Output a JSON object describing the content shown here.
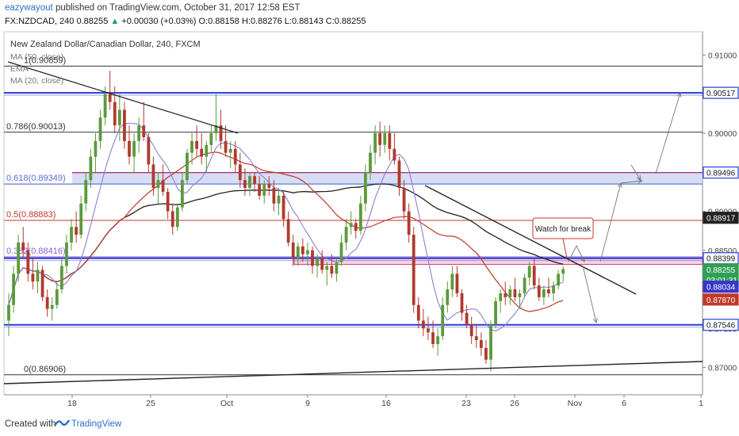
{
  "header": {
    "author": "eazywayout",
    "published_text": "published on TradingView.com, October 31, 2017 12:58 EST",
    "symbol": "FX:NZDCAD, 240",
    "last": "0.88255",
    "change": "+0.00030 (+0.03%)",
    "ohlc": "O:0.88158 H:0.88276 L:0.88143 C:0.88255"
  },
  "legend": {
    "title": "New Zealand Dollar/Canadian Dollar, 240, FXCM",
    "ma50": "MA (50, close)",
    "ema": "EMA",
    "ma20": "MA (20, close)"
  },
  "footer": {
    "created_with": "Created with",
    "brand": "TradingView"
  },
  "colors": {
    "up": "#5b9a3c",
    "down": "#b03a2e",
    "ma_red": "#c0392b",
    "ma_black": "#222222",
    "ma_purple": "#8c7ed6",
    "blue_line": "#2c3bd6",
    "blue_zone": "#c7d3f3",
    "pink_zone": "#f7d3e1"
  },
  "chart_data": {
    "type": "candlestick",
    "title": "New Zealand Dollar/Canadian Dollar, 240, FXCM",
    "ylim": [
      0.8665,
      0.913
    ],
    "x_ticks": [
      "18",
      "25",
      "Oct",
      "9",
      "16",
      "23",
      "26",
      "Nov",
      "6",
      "1"
    ],
    "y_ticks": [
      "0.91000",
      "0.90500",
      "0.90000",
      "0.89500",
      "0.89000",
      "0.88500",
      "0.88000",
      "0.87500",
      "0.87000"
    ],
    "price_badges": [
      {
        "label": "0.90517",
        "value": 0.90517,
        "style": "blue"
      },
      {
        "label": "0.89496",
        "value": 0.89496,
        "style": "blue"
      },
      {
        "label": "0.88917",
        "value": 0.88917,
        "style": "dark"
      },
      {
        "label": "0.88399",
        "value": 0.88399,
        "style": "blue"
      },
      {
        "label": "0.88255",
        "value": 0.88255,
        "style": "green"
      },
      {
        "label": "03:01:31",
        "value": 0.8817,
        "style": "green"
      },
      {
        "label": "0.88034",
        "value": 0.88034,
        "style": "indigo"
      },
      {
        "label": "0.87870",
        "value": 0.8787,
        "style": "red"
      },
      {
        "label": "0.87546",
        "value": 0.87546,
        "style": "blue"
      }
    ],
    "fib_levels": [
      {
        "label": "1(0.90859)",
        "value": 0.90859,
        "color": "#333333"
      },
      {
        "label": "0.786(0.90013)",
        "value": 0.90013,
        "color": "#333333"
      },
      {
        "label": "0.618(0.89349)",
        "value": 0.89349,
        "color": "#5a6fd6"
      },
      {
        "label": "0.5(0.88883)",
        "value": 0.88883,
        "color": "#c0392b"
      },
      {
        "label": "0.382(0.88416)",
        "value": 0.88416,
        "color": "#8c5cd6"
      },
      {
        "label": "0(0.86906)",
        "value": 0.86906,
        "color": "#333333"
      }
    ],
    "annotations": [
      {
        "text": "Watch for break"
      }
    ],
    "candles_ohlc": [
      [
        0.876,
        0.8795,
        0.874,
        0.878
      ],
      [
        0.878,
        0.883,
        0.877,
        0.882
      ],
      [
        0.882,
        0.887,
        0.881,
        0.886
      ],
      [
        0.886,
        0.888,
        0.884,
        0.885
      ],
      [
        0.885,
        0.886,
        0.881,
        0.882
      ],
      [
        0.882,
        0.884,
        0.88,
        0.881
      ],
      [
        0.881,
        0.8835,
        0.8795,
        0.8825
      ],
      [
        0.8825,
        0.883,
        0.8785,
        0.879
      ],
      [
        0.879,
        0.88,
        0.8765,
        0.8775
      ],
      [
        0.8775,
        0.879,
        0.876,
        0.878
      ],
      [
        0.878,
        0.881,
        0.8775,
        0.88
      ],
      [
        0.88,
        0.884,
        0.8795,
        0.883
      ],
      [
        0.883,
        0.887,
        0.882,
        0.886
      ],
      [
        0.886,
        0.889,
        0.885,
        0.888
      ],
      [
        0.888,
        0.89,
        0.886,
        0.887
      ],
      [
        0.887,
        0.892,
        0.8865,
        0.891
      ],
      [
        0.891,
        0.895,
        0.89,
        0.894
      ],
      [
        0.894,
        0.898,
        0.893,
        0.897
      ],
      [
        0.897,
        0.9,
        0.895,
        0.899
      ],
      [
        0.899,
        0.903,
        0.898,
        0.902
      ],
      [
        0.902,
        0.906,
        0.901,
        0.905
      ],
      [
        0.905,
        0.908,
        0.903,
        0.904
      ],
      [
        0.904,
        0.906,
        0.9,
        0.901
      ],
      [
        0.901,
        0.905,
        0.899,
        0.903
      ],
      [
        0.903,
        0.904,
        0.898,
        0.899
      ],
      [
        0.899,
        0.901,
        0.896,
        0.897
      ],
      [
        0.897,
        0.9,
        0.895,
        0.899
      ],
      [
        0.899,
        0.902,
        0.8975,
        0.901
      ],
      [
        0.901,
        0.904,
        0.899,
        0.8995
      ],
      [
        0.8995,
        0.9,
        0.895,
        0.896
      ],
      [
        0.896,
        0.897,
        0.892,
        0.893
      ],
      [
        0.893,
        0.895,
        0.891,
        0.894
      ],
      [
        0.894,
        0.896,
        0.892,
        0.8925
      ],
      [
        0.8925,
        0.893,
        0.889,
        0.89
      ],
      [
        0.89,
        0.891,
        0.887,
        0.888
      ],
      [
        0.888,
        0.891,
        0.8875,
        0.8905
      ],
      [
        0.8905,
        0.895,
        0.89,
        0.894
      ],
      [
        0.894,
        0.898,
        0.8935,
        0.8975
      ],
      [
        0.8975,
        0.9,
        0.896,
        0.899
      ],
      [
        0.899,
        0.901,
        0.897,
        0.898
      ],
      [
        0.898,
        0.9,
        0.896,
        0.897
      ],
      [
        0.897,
        0.899,
        0.895,
        0.8985
      ],
      [
        0.8985,
        0.901,
        0.8975,
        0.9
      ],
      [
        0.9,
        0.905,
        0.899,
        0.901
      ],
      [
        0.901,
        0.903,
        0.898,
        0.899
      ],
      [
        0.899,
        0.901,
        0.897,
        0.8975
      ],
      [
        0.8975,
        0.899,
        0.8955,
        0.898
      ],
      [
        0.898,
        0.899,
        0.895,
        0.896
      ],
      [
        0.896,
        0.8975,
        0.893,
        0.894
      ],
      [
        0.894,
        0.8955,
        0.892,
        0.893
      ],
      [
        0.893,
        0.895,
        0.892,
        0.8945
      ],
      [
        0.8945,
        0.895,
        0.8925,
        0.8935
      ],
      [
        0.8935,
        0.8945,
        0.8915,
        0.892
      ],
      [
        0.892,
        0.894,
        0.891,
        0.8935
      ],
      [
        0.8935,
        0.8945,
        0.892,
        0.893
      ],
      [
        0.893,
        0.894,
        0.89,
        0.891
      ],
      [
        0.891,
        0.893,
        0.8895,
        0.892
      ],
      [
        0.892,
        0.8925,
        0.888,
        0.889
      ],
      [
        0.889,
        0.89,
        0.8855,
        0.886
      ],
      [
        0.886,
        0.887,
        0.883,
        0.884
      ],
      [
        0.884,
        0.886,
        0.883,
        0.8855
      ],
      [
        0.8855,
        0.8865,
        0.8835,
        0.8845
      ],
      [
        0.8845,
        0.886,
        0.883,
        0.885
      ],
      [
        0.885,
        0.8855,
        0.882,
        0.883
      ],
      [
        0.883,
        0.8845,
        0.8815,
        0.884
      ],
      [
        0.884,
        0.885,
        0.882,
        0.8825
      ],
      [
        0.8825,
        0.8835,
        0.8805,
        0.883
      ],
      [
        0.883,
        0.8845,
        0.8815,
        0.882
      ],
      [
        0.882,
        0.884,
        0.881,
        0.8835
      ],
      [
        0.8835,
        0.887,
        0.883,
        0.886
      ],
      [
        0.886,
        0.889,
        0.885,
        0.888
      ],
      [
        0.888,
        0.89,
        0.887,
        0.8885
      ],
      [
        0.8885,
        0.889,
        0.8865,
        0.8875
      ],
      [
        0.8875,
        0.892,
        0.887,
        0.891
      ],
      [
        0.891,
        0.896,
        0.89,
        0.895
      ],
      [
        0.895,
        0.8985,
        0.894,
        0.8975
      ],
      [
        0.8975,
        0.901,
        0.896,
        0.9
      ],
      [
        0.9,
        0.9015,
        0.897,
        0.8985
      ],
      [
        0.8985,
        0.901,
        0.8975,
        0.9
      ],
      [
        0.9,
        0.901,
        0.8965,
        0.898
      ],
      [
        0.898,
        0.9,
        0.896,
        0.8965
      ],
      [
        0.8965,
        0.897,
        0.892,
        0.893
      ],
      [
        0.893,
        0.894,
        0.889,
        0.89
      ],
      [
        0.89,
        0.891,
        0.886,
        0.887
      ],
      [
        0.887,
        0.888,
        0.877,
        0.878
      ],
      [
        0.878,
        0.879,
        0.875,
        0.876
      ],
      [
        0.876,
        0.8775,
        0.874,
        0.875
      ],
      [
        0.875,
        0.8765,
        0.8735,
        0.8745
      ],
      [
        0.8745,
        0.876,
        0.8725,
        0.873
      ],
      [
        0.873,
        0.875,
        0.8715,
        0.874
      ],
      [
        0.874,
        0.879,
        0.8735,
        0.878
      ],
      [
        0.878,
        0.881,
        0.877,
        0.88
      ],
      [
        0.88,
        0.883,
        0.879,
        0.882
      ],
      [
        0.882,
        0.883,
        0.879,
        0.8795
      ],
      [
        0.8795,
        0.88,
        0.876,
        0.877
      ],
      [
        0.877,
        0.878,
        0.875,
        0.8755
      ],
      [
        0.8755,
        0.8765,
        0.873,
        0.874
      ],
      [
        0.874,
        0.8755,
        0.8725,
        0.8735
      ],
      [
        0.8735,
        0.8745,
        0.8715,
        0.8725
      ],
      [
        0.8725,
        0.8735,
        0.8705,
        0.871
      ],
      [
        0.871,
        0.876,
        0.8695,
        0.8755
      ],
      [
        0.8755,
        0.879,
        0.875,
        0.8785
      ],
      [
        0.8785,
        0.88,
        0.877,
        0.8795
      ],
      [
        0.8795,
        0.881,
        0.878,
        0.879
      ],
      [
        0.879,
        0.8805,
        0.878,
        0.88
      ],
      [
        0.88,
        0.8815,
        0.8785,
        0.879
      ],
      [
        0.879,
        0.88,
        0.8775,
        0.8795
      ],
      [
        0.8795,
        0.882,
        0.879,
        0.8815
      ],
      [
        0.8815,
        0.8835,
        0.8805,
        0.883
      ],
      [
        0.883,
        0.884,
        0.88,
        0.8805
      ],
      [
        0.8805,
        0.8815,
        0.8785,
        0.879
      ],
      [
        0.879,
        0.8805,
        0.878,
        0.88
      ],
      [
        0.88,
        0.8815,
        0.879,
        0.8795
      ],
      [
        0.8795,
        0.881,
        0.8785,
        0.8805
      ],
      [
        0.8805,
        0.8825,
        0.88,
        0.882
      ],
      [
        0.882,
        0.883,
        0.881,
        0.8826
      ]
    ]
  }
}
